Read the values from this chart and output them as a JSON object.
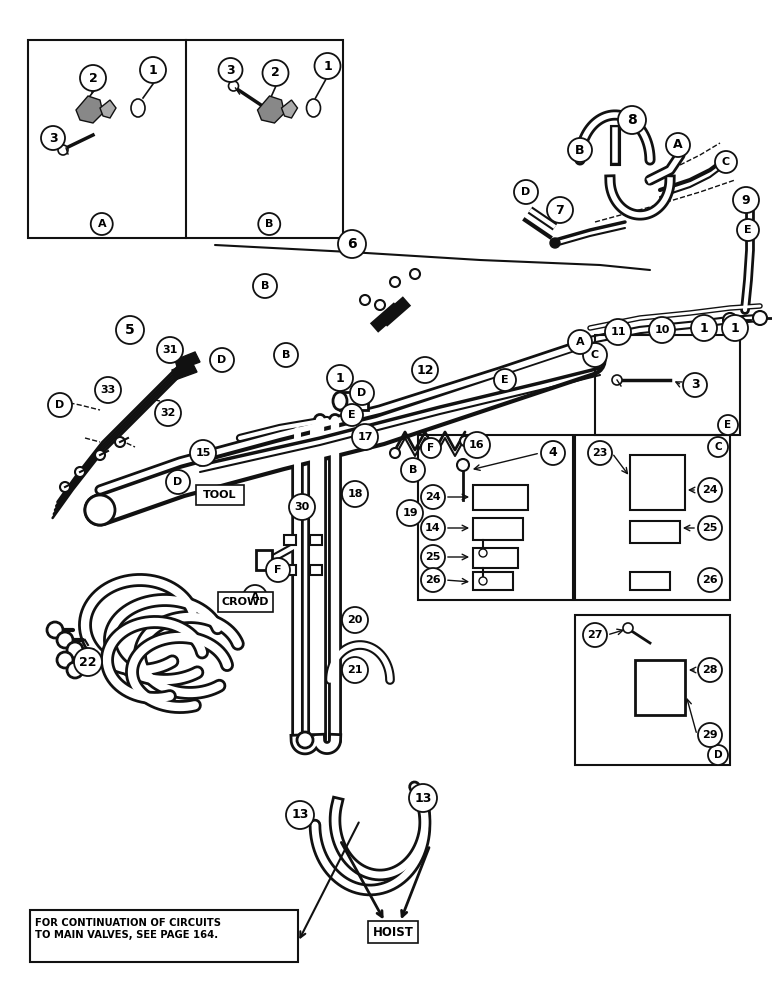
{
  "background_color": "#ffffff",
  "line_color": "#111111",
  "text_color": "#000000",
  "fig_width": 7.72,
  "fig_height": 10.0,
  "dpi": 100,
  "note_text": "FOR CONTINUATION OF CIRCUITS\nTO MAIN VALVES, SEE PAGE 164.",
  "hoist_label": "HOIST",
  "tool_label": "TOOL",
  "crowd_label": "CROWD"
}
